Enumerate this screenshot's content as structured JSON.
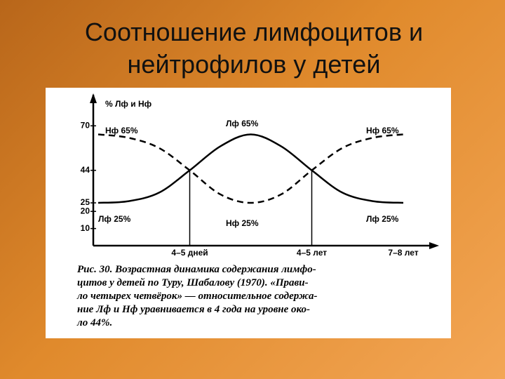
{
  "slide": {
    "title": [
      "Соотношение лимфоцитов и",
      "нейтрофилов у детей"
    ]
  },
  "chart_data": {
    "type": "line",
    "ylabel": "% Лф и Нф",
    "categories": [
      null,
      null,
      null,
      "4–5 дней",
      null,
      null,
      null,
      "4–5 лет",
      null,
      null,
      "7–8 лет"
    ],
    "series": [
      {
        "color": "#000000",
        "dash": false,
        "values": [
          25,
          26,
          31,
          44,
          58,
          65,
          58,
          44,
          31,
          26,
          25
        ]
      },
      {
        "color": "#000000",
        "dash": true,
        "values": [
          65,
          63,
          57,
          44,
          30,
          25,
          30,
          44,
          57,
          63,
          65
        ]
      }
    ],
    "ylim": [
      0,
      82
    ],
    "yticks": [
      10,
      20,
      25,
      44,
      70
    ],
    "annotations": [
      "Нф 65%",
      "Лф 65%",
      "Нф 65%",
      "Лф 25%",
      "Нф 25%",
      "Лф 25%"
    ],
    "caption": [
      "Рис. 30. Возрастная динамика содержания лимфо-",
      "цитов у детей по Туру, Шабалову (1970). «Прави-",
      "ло четырех четвёрок» — относительное содержа-",
      "ние Лф и Нф уравнивается в 4 года на уровне око-",
      "ло 44%."
    ]
  }
}
